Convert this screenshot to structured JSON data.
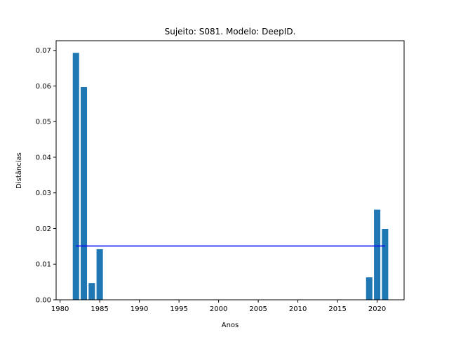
{
  "chart_data": {
    "type": "bar",
    "title": "Sujeito: S081. Modelo: DeepID.",
    "xlabel": "Anos",
    "ylabel": "Distâncias",
    "x": [
      1982,
      1983,
      1984,
      1985,
      2019,
      2020,
      2021
    ],
    "values": [
      0.0693,
      0.0597,
      0.0047,
      0.0142,
      0.0063,
      0.0253,
      0.0199
    ],
    "bar_color": "#1f77b4",
    "reference_line": {
      "y": 0.0151,
      "x_start": 1982,
      "x_end": 2021,
      "color": "#0000ff"
    },
    "xlim": [
      1979.5,
      2023.4
    ],
    "ylim": [
      0,
      0.0727
    ],
    "xticks": [
      1980,
      1985,
      1990,
      1995,
      2000,
      2005,
      2010,
      2015,
      2020
    ],
    "yticks": [
      0.0,
      0.01,
      0.02,
      0.03,
      0.04,
      0.05,
      0.06,
      0.07
    ],
    "ytick_labels": [
      "0.00",
      "0.01",
      "0.02",
      "0.03",
      "0.04",
      "0.05",
      "0.06",
      "0.07"
    ],
    "grid": false,
    "legend": "none"
  }
}
